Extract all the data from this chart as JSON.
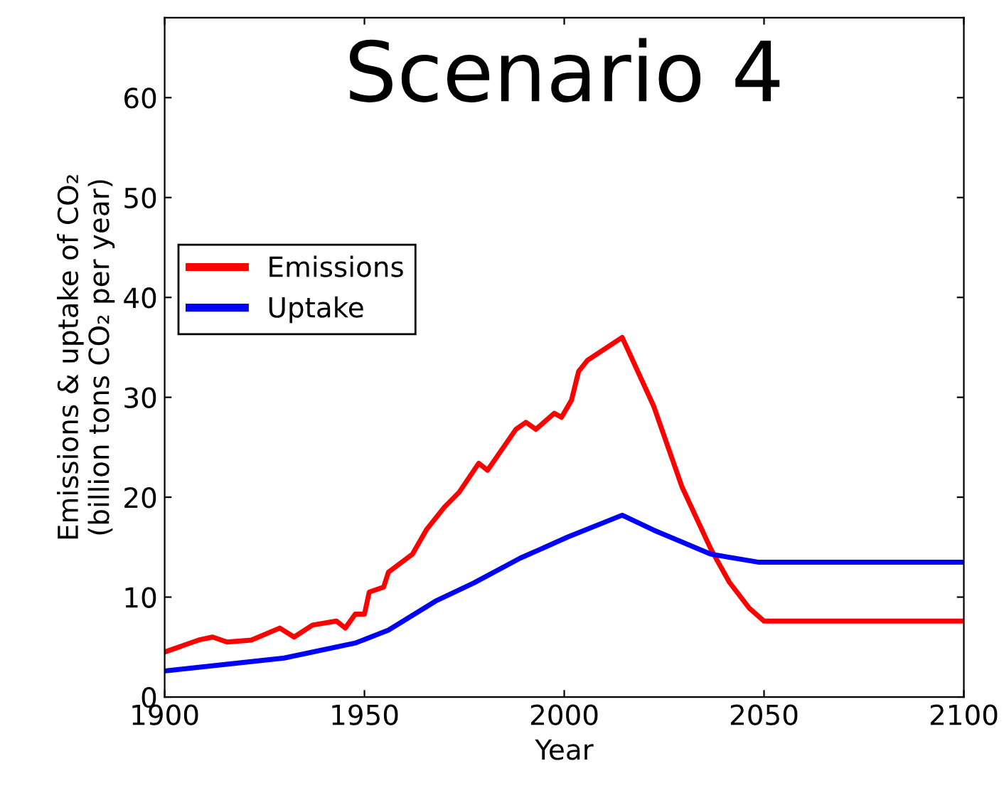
{
  "chart_data": {
    "type": "line",
    "title": "Scenario 4",
    "xlabel": "Year",
    "ylabel": "Emissions & uptake of CO₂\n(billion tons CO₂ per year)",
    "xlim": [
      1900,
      2100
    ],
    "ylim": [
      0,
      68
    ],
    "xticks": [
      1900,
      1950,
      2000,
      2050,
      2100
    ],
    "yticks": [
      0,
      10,
      20,
      30,
      40,
      50,
      60
    ],
    "grid": false,
    "legend": "left",
    "line_style": "solid",
    "marker": "none",
    "series": [
      {
        "name": "Emissions",
        "color": "#ff0000",
        "x": [
          1900,
          1908.5,
          1912,
          1915.6,
          1921.7,
          1928.8,
          1932.4,
          1937,
          1943,
          1945.2,
          1947.7,
          1950,
          1951.2,
          1954.8,
          1956,
          1962,
          1965.6,
          1970,
          1973.7,
          1978.6,
          1980.8,
          1987.9,
          1990.4,
          1992.9,
          1997.5,
          1999.3,
          2001.8,
          2003.6,
          2005.8,
          2014.5,
          2022.4,
          2029.5,
          2036.7,
          2041.3,
          2046.3,
          2050,
          2100
        ],
        "values": [
          4.5,
          5.7,
          6.0,
          5.5,
          5.7,
          6.9,
          6.0,
          7.2,
          7.6,
          6.9,
          8.3,
          8.3,
          10.5,
          11,
          12.5,
          14.3,
          16.8,
          19,
          20.5,
          23.4,
          22.7,
          26.8,
          27.5,
          26.8,
          28.4,
          28,
          29.7,
          32.6,
          33.7,
          36,
          29.1,
          21,
          14.8,
          11.5,
          8.9,
          7.6,
          7.6
        ]
      },
      {
        "name": "Uptake",
        "color": "#0000ff",
        "x": [
          1900,
          1929.9,
          1947.7,
          1956,
          1967.8,
          1977.3,
          1989,
          2000.8,
          2014.5,
          2022.4,
          2036.7,
          2048.5,
          2050,
          2100
        ],
        "values": [
          2.6,
          3.9,
          5.4,
          6.7,
          9.6,
          11.4,
          13.9,
          16,
          18.2,
          16.7,
          14.3,
          13.5,
          13.5,
          13.5
        ]
      }
    ]
  }
}
